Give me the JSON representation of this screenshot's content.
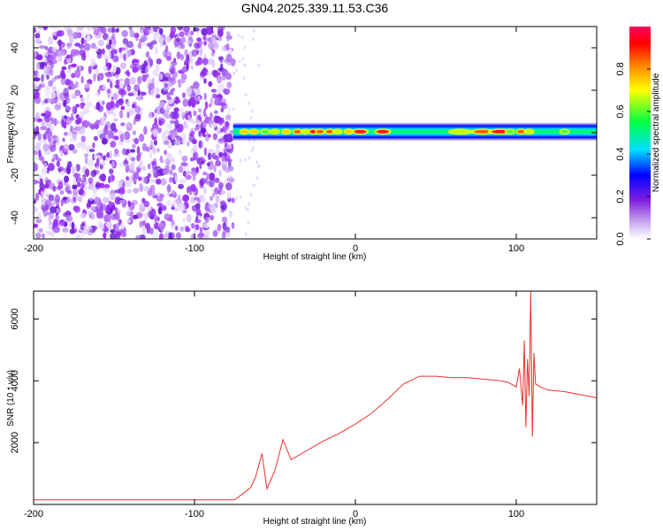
{
  "figure_title": "GN04.2025.339.11.53.C36",
  "chart_data": [
    {
      "type": "heatmap",
      "title": "GN04.2025.339.11.53.C36",
      "xlabel": "Height of straight line (km)",
      "ylabel": "Frequency (Hz)",
      "xlim": [
        -200,
        150
      ],
      "ylim": [
        -50,
        50
      ],
      "xticks": [
        -200,
        -100,
        0,
        100
      ],
      "yticks": [
        -40,
        -20,
        0,
        20,
        40
      ],
      "noise_region_x": [
        -200,
        -76
      ],
      "signal_band": {
        "x_start": -76,
        "x_end": 150,
        "center_freq": 0.5,
        "halfwidth": 2.0,
        "peaks": [
          {
            "x": -69,
            "amp": 0.75
          },
          {
            "x": -63,
            "amp": 0.8
          },
          {
            "x": -56,
            "amp": 0.55
          },
          {
            "x": -50,
            "amp": 0.7
          },
          {
            "x": -43,
            "amp": 0.75
          },
          {
            "x": -36,
            "amp": 0.9
          },
          {
            "x": -31,
            "amp": 0.65
          },
          {
            "x": -26,
            "amp": 0.95
          },
          {
            "x": -22,
            "amp": 0.9
          },
          {
            "x": -16,
            "amp": 0.85
          },
          {
            "x": -11,
            "amp": 0.7
          },
          {
            "x": -4,
            "amp": 0.75
          },
          {
            "x": 3,
            "amp": 1.0
          },
          {
            "x": 17,
            "amp": 1.0
          },
          {
            "x": 65,
            "amp": 0.7
          },
          {
            "x": 79,
            "amp": 0.9
          },
          {
            "x": 90,
            "amp": 1.0
          },
          {
            "x": 96,
            "amp": 0.6
          },
          {
            "x": 103,
            "amp": 0.85
          },
          {
            "x": 108,
            "amp": 0.7
          },
          {
            "x": 130,
            "amp": 0.6
          }
        ]
      },
      "colorbar": {
        "label": "Normalized spectral amplitude",
        "range": [
          0,
          1
        ],
        "ticks": [
          "0.0",
          "0.2",
          "0.4",
          "0.6",
          "0.8"
        ],
        "tick_values": [
          0.0,
          0.2,
          0.4,
          0.6,
          0.8
        ],
        "colors": [
          "#ffffff",
          "#c8a8f0",
          "#8020e0",
          "#0000ff",
          "#00e0ff",
          "#00ff40",
          "#ffff00",
          "#ff8000",
          "#ff0000",
          "#ff0060"
        ]
      }
    },
    {
      "type": "line",
      "xlabel": "Height of straight line (km)",
      "ylabel": "SNR (10 * v/v)",
      "xlim": [
        -200,
        150
      ],
      "ylim": [
        0,
        6900
      ],
      "xticks": [
        -200,
        -100,
        0,
        100
      ],
      "yticks": [
        2000,
        4000,
        6000
      ],
      "line_color": "#ee3030",
      "series": [
        {
          "name": "SNR",
          "x": [
            -200,
            -150,
            -100,
            -75,
            -70,
            -65,
            -62,
            -58,
            -55,
            -50,
            -45,
            -40,
            -30,
            -20,
            -10,
            0,
            10,
            20,
            30,
            40,
            50,
            60,
            70,
            80,
            90,
            95,
            100,
            102,
            104,
            105,
            106,
            107,
            108,
            109,
            110,
            111,
            112,
            115,
            120,
            130,
            140,
            150
          ],
          "values": [
            150,
            150,
            150,
            150,
            350,
            550,
            900,
            1650,
            500,
            1100,
            2100,
            1450,
            1750,
            2050,
            2300,
            2600,
            2950,
            3400,
            3900,
            4150,
            4150,
            4100,
            4100,
            4050,
            4000,
            3950,
            3800,
            4400,
            3200,
            5300,
            2500,
            4700,
            3500,
            6900,
            2200,
            4900,
            3900,
            3800,
            3700,
            3650,
            3550,
            3450
          ]
        }
      ]
    }
  ]
}
